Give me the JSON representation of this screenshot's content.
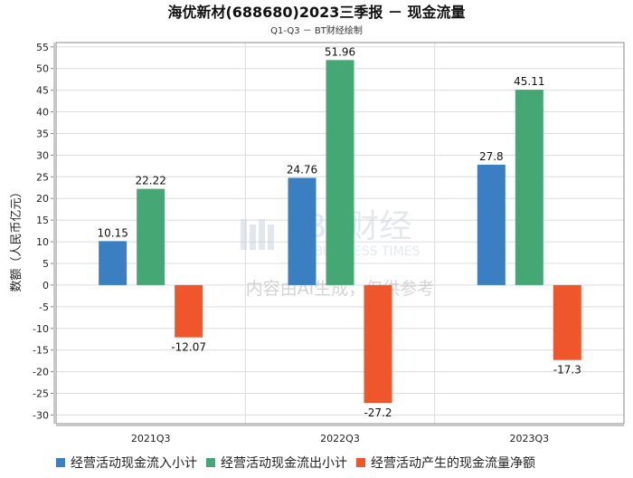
{
  "chart_data": {
    "type": "bar",
    "title": "海优新材(688680)2023三季报 － 现金流量",
    "subtitle": "Q1-Q3 － BT财经绘制",
    "ylabel": "数额（人民币亿元）",
    "xlabel": "",
    "categories": [
      "2021Q3",
      "2022Q3",
      "2023Q3"
    ],
    "ylim": [
      -32,
      56
    ],
    "yticks": [
      -30,
      -25,
      -20,
      -15,
      -10,
      -5,
      0,
      5,
      10,
      15,
      20,
      25,
      30,
      35,
      40,
      45,
      50,
      55
    ],
    "grid": true,
    "legend_position": "bottom",
    "series": [
      {
        "name": "经营活动现金流入小计",
        "color": "#3a7fc1",
        "values": [
          10.15,
          24.76,
          27.8
        ],
        "labels": [
          "10.15",
          "24.76",
          "27.8"
        ]
      },
      {
        "name": "经营活动现金流出小计",
        "color": "#45a874",
        "values": [
          22.22,
          51.96,
          45.11
        ],
        "labels": [
          "22.22",
          "51.96",
          "45.11"
        ]
      },
      {
        "name": "经营活动产生的现金流量净额",
        "color": "#f0562b",
        "values": [
          -12.07,
          -27.2,
          -17.3
        ],
        "labels": [
          "-12.07",
          "-27.2",
          "-17.3"
        ]
      }
    ],
    "watermark": {
      "brand": "BT财经",
      "brand_en": "BUSINESS TIMES",
      "notice": "内容由AI生成，仅供参考"
    }
  }
}
